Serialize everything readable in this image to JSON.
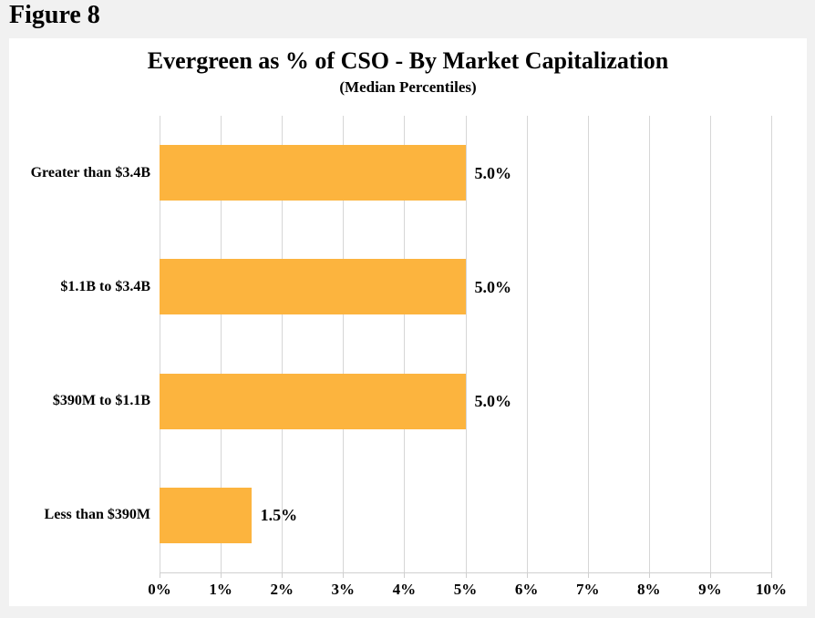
{
  "figure_label": "Figure 8",
  "chart_data": {
    "type": "bar",
    "orientation": "horizontal",
    "title": "Evergreen as % of CSO - By Market Capitalization",
    "subtitle": "(Median Percentiles)",
    "categories": [
      "Greater than $3.4B",
      "$1.1B to $3.4B",
      "$390M to $1.1B",
      "Less than $390M"
    ],
    "values": [
      5.0,
      5.0,
      5.0,
      1.5
    ],
    "value_labels": [
      "5.0%",
      "5.0%",
      "5.0%",
      "1.5%"
    ],
    "x_tick_labels": [
      "0%",
      "1%",
      "2%",
      "3%",
      "4%",
      "5%",
      "6%",
      "7%",
      "8%",
      "9%",
      "10%"
    ],
    "x_tick_values": [
      0,
      1,
      2,
      3,
      4,
      5,
      6,
      7,
      8,
      9,
      10
    ],
    "xlim": [
      0,
      10
    ],
    "grid": true,
    "legend": false,
    "bar_color": "#FCB43E",
    "background_color": "#F1F1F1",
    "plot_background": "#FFFFFF",
    "gridline_color": "#D6D6D6"
  }
}
